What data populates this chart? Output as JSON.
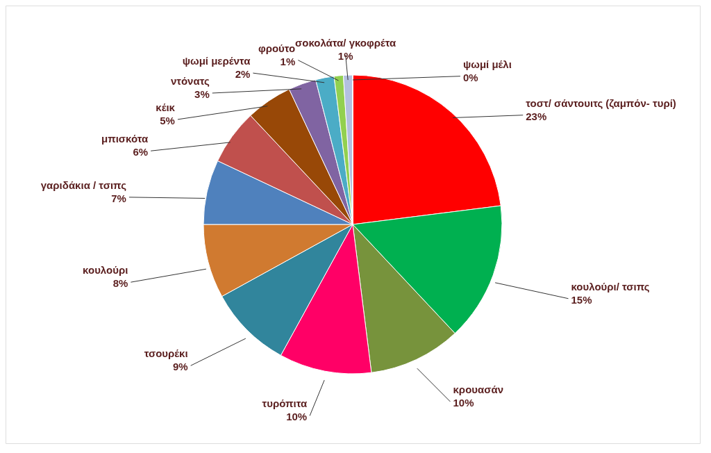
{
  "chart_data": {
    "type": "pie",
    "categories": [
      "τοστ/ σάντουιτς (ζαμπόν- τυρί)",
      "κουλούρι/ τσιπς",
      "κρουασάν",
      "τυρόπιτα",
      "τσουρέκι",
      "κουλούρι",
      "γαριδάκια / τσιπς",
      "μπισκότα",
      "κέικ",
      "ντόνατς",
      "ψωμί μερέντα",
      "φρούτο",
      "σοκολάτα/ γκοφρέτα",
      "ψωμί μέλι"
    ],
    "values": [
      23,
      15,
      10,
      10,
      9,
      8,
      7,
      6,
      5,
      3,
      2,
      1,
      1,
      0
    ],
    "value_labels": [
      "23%",
      "15%",
      "10%",
      "10%",
      "9%",
      "8%",
      "7%",
      "6%",
      "5%",
      "3%",
      "2%",
      "1%",
      "1%",
      "0%"
    ],
    "colors": [
      "#ff0000",
      "#00b050",
      "#77933c",
      "#ff0066",
      "#31859c",
      "#d07a30",
      "#4f81bd",
      "#c0504d",
      "#984807",
      "#8064a2",
      "#4bacc6",
      "#92d050",
      "#b3c0e0",
      "#c6d0ea"
    ],
    "legend": false
  }
}
